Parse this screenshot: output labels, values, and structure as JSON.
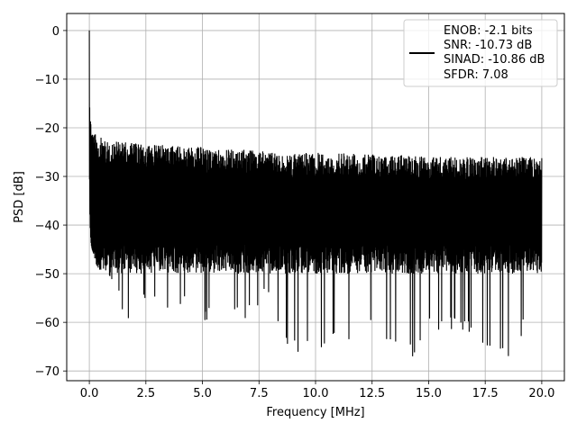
{
  "chart_data": {
    "type": "line",
    "title": "",
    "xlabel": "Frequency [MHz]",
    "ylabel": "PSD [dB]",
    "xlim": [
      -1.0,
      21.0
    ],
    "ylim": [
      -72.0,
      3.5
    ],
    "xticks": [
      0.0,
      2.5,
      5.0,
      7.5,
      10.0,
      12.5,
      15.0,
      17.5,
      20.0
    ],
    "xtick_labels": [
      "0.0",
      "2.5",
      "5.0",
      "7.5",
      "10.0",
      "12.5",
      "15.0",
      "17.5",
      "20.0"
    ],
    "yticks": [
      0,
      -10,
      -20,
      -30,
      -40,
      -50,
      -60,
      -70
    ],
    "ytick_labels": [
      "0",
      "−10",
      "−20",
      "−30",
      "−40",
      "−50",
      "−60",
      "−70"
    ],
    "grid": true,
    "legend_position": "top-right",
    "series": [
      {
        "color": "#000000",
        "description": "dense noise-like spectrum; peak at 0 MHz, upper envelope about -25 dB, lower envelope about -45 to -55 dB",
        "x": [
          0.0,
          0.02,
          0.05,
          0.08,
          0.12,
          0.2,
          0.3,
          0.5,
          1.0,
          1.7,
          2.5,
          3.5,
          5.0,
          5.1,
          6.5,
          7.5,
          7.8,
          8.7,
          10.0,
          12.5,
          14.3,
          15.0,
          16.5,
          17.5,
          18.4,
          18.8,
          20.0
        ],
        "upper": [
          0.0,
          -13.0,
          -17.0,
          -19.0,
          -20.5,
          -21.0,
          -21.5,
          -22.0,
          -22.5,
          -23.0,
          -23.5,
          -23.5,
          -24.0,
          -24.5,
          -24.5,
          -24.5,
          -25.0,
          -25.5,
          -25.0,
          -25.5,
          -25.5,
          -26.0,
          -26.0,
          -26.0,
          -26.0,
          -26.0,
          -26.0
        ],
        "lower": [
          -26.0,
          -37.0,
          -42.0,
          -44.0,
          -45.0,
          -46.0,
          -48.0,
          -50.0,
          -52.0,
          -62.0,
          -55.0,
          -58.0,
          -53.0,
          -60.0,
          -60.0,
          -58.0,
          -55.0,
          -66.0,
          -66.5,
          -62.0,
          -67.5,
          -62.0,
          -62.0,
          -65.0,
          -68.5,
          -67.0,
          -52.0
        ]
      }
    ]
  },
  "legend": {
    "line1": "ENOB: -2.1 bits",
    "line2": "SNR: -10.73 dB",
    "line3": "SINAD: -10.86 dB",
    "line4": "SFDR: 7.08"
  }
}
